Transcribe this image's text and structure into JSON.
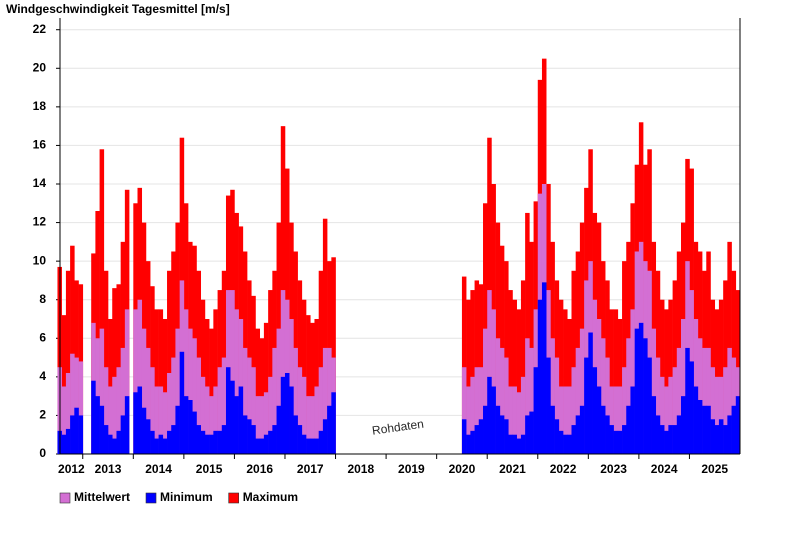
{
  "chart_data": {
    "type": "bar",
    "title": "Windgeschwindigkeit Tagesmittel [m/s]",
    "watermark": "Rohdaten",
    "x": [
      2012.5,
      2012.583,
      2012.667,
      2012.75,
      2012.833,
      2012.917,
      2013.167,
      2013.25,
      2013.333,
      2013.417,
      2013.5,
      2013.583,
      2013.667,
      2013.75,
      2013.833,
      2014,
      2014.083,
      2014.167,
      2014.25,
      2014.333,
      2014.417,
      2014.5,
      2014.583,
      2014.667,
      2014.75,
      2014.833,
      2014.917,
      2015,
      2015.083,
      2015.167,
      2015.25,
      2015.333,
      2015.417,
      2015.5,
      2015.583,
      2015.667,
      2015.75,
      2015.833,
      2015.917,
      2016,
      2016.083,
      2016.167,
      2016.25,
      2016.333,
      2016.417,
      2016.5,
      2016.583,
      2016.667,
      2016.75,
      2016.833,
      2016.917,
      2017,
      2017.083,
      2017.167,
      2017.25,
      2017.333,
      2017.417,
      2017.5,
      2017.583,
      2017.667,
      2017.75,
      2017.833,
      2017.917,
      2020.5,
      2020.583,
      2020.667,
      2020.75,
      2020.833,
      2020.917,
      2021,
      2021.083,
      2021.167,
      2021.25,
      2021.333,
      2021.417,
      2021.5,
      2021.583,
      2021.667,
      2021.75,
      2021.833,
      2021.917,
      2022,
      2022.083,
      2022.167,
      2022.25,
      2022.333,
      2022.417,
      2022.5,
      2022.583,
      2022.667,
      2022.75,
      2022.833,
      2022.917,
      2023,
      2023.083,
      2023.167,
      2023.25,
      2023.333,
      2023.417,
      2023.5,
      2023.583,
      2023.667,
      2023.75,
      2023.833,
      2023.917,
      2024,
      2024.083,
      2024.167,
      2024.25,
      2024.333,
      2024.417,
      2024.5,
      2024.583,
      2024.667,
      2024.75,
      2024.833,
      2024.917,
      2025,
      2025.083,
      2025.167,
      2025.25,
      2025.333,
      2025.417,
      2025.5,
      2025.583,
      2025.667,
      2025.75,
      2025.833,
      2025.917
    ],
    "series": [
      {
        "name": "Maximum",
        "color": "#ff0000",
        "values": [
          9.7,
          7.2,
          9.5,
          10.8,
          9.0,
          8.8,
          10.4,
          12.6,
          15.8,
          9.5,
          7.0,
          8.6,
          8.8,
          11.0,
          13.7,
          13.0,
          13.8,
          12.0,
          10.0,
          8.7,
          7.5,
          7.5,
          7.0,
          9.5,
          10.5,
          12.0,
          16.4,
          13.0,
          11.0,
          10.8,
          9.5,
          8.0,
          7.0,
          6.5,
          7.5,
          8.5,
          9.5,
          13.4,
          13.7,
          12.5,
          11.8,
          10.5,
          9.0,
          8.2,
          6.5,
          6.0,
          6.8,
          8.5,
          9.5,
          12.0,
          17.0,
          14.8,
          12.0,
          10.5,
          9.0,
          8.0,
          7.2,
          6.8,
          7.0,
          9.5,
          12.2,
          10.0,
          10.2,
          9.2,
          8.0,
          8.5,
          9.0,
          8.8,
          13.0,
          16.4,
          14.0,
          12.0,
          10.8,
          10.0,
          8.5,
          8.0,
          7.5,
          9.0,
          12.5,
          11.0,
          13.1,
          19.4,
          20.5,
          14.0,
          11.0,
          9.0,
          8.0,
          7.5,
          7.0,
          9.5,
          10.5,
          12.0,
          13.8,
          15.8,
          12.5,
          12.0,
          10.0,
          9.0,
          7.5,
          7.5,
          7.0,
          10.0,
          11.0,
          13.0,
          15.0,
          17.2,
          15.0,
          15.8,
          11.0,
          9.5,
          8.0,
          7.5,
          8.0,
          9.0,
          10.5,
          12.0,
          15.3,
          14.8,
          11.0,
          10.5,
          9.5,
          10.5,
          8.0,
          7.5,
          8.0,
          9.0,
          11.0,
          9.5,
          8.5
        ]
      },
      {
        "name": "Mittelwert",
        "color": "#d36fd3",
        "values": [
          4.5,
          3.5,
          4.2,
          5.2,
          5.0,
          4.8,
          6.8,
          6.0,
          6.5,
          4.5,
          3.5,
          4.0,
          4.5,
          5.5,
          7.5,
          7.5,
          8.0,
          6.5,
          5.5,
          4.5,
          3.5,
          3.5,
          3.2,
          4.2,
          5.0,
          6.5,
          9.0,
          7.5,
          6.5,
          6.0,
          5.0,
          4.0,
          3.5,
          3.0,
          3.5,
          4.5,
          5.0,
          8.5,
          8.5,
          7.5,
          7.0,
          5.5,
          5.0,
          4.5,
          3.0,
          3.0,
          3.2,
          4.0,
          5.5,
          6.5,
          8.5,
          8.0,
          7.0,
          5.5,
          4.5,
          4.0,
          3.0,
          3.0,
          3.5,
          4.5,
          5.5,
          5.5,
          5.0,
          4.5,
          3.5,
          4.0,
          4.5,
          4.5,
          6.5,
          8.5,
          7.5,
          6.0,
          5.5,
          5.0,
          3.5,
          3.5,
          3.2,
          4.0,
          6.0,
          5.5,
          7.5,
          13.5,
          14.0,
          8.5,
          6.0,
          5.0,
          3.5,
          3.5,
          3.5,
          4.5,
          5.5,
          6.5,
          9.0,
          10.0,
          8.0,
          7.0,
          6.0,
          5.0,
          3.5,
          3.5,
          3.5,
          4.5,
          6.0,
          7.5,
          10.5,
          11.0,
          10.0,
          9.5,
          6.5,
          5.0,
          4.0,
          3.5,
          4.0,
          4.5,
          5.5,
          7.0,
          10.0,
          8.5,
          7.0,
          6.0,
          5.5,
          5.5,
          4.5,
          4.0,
          4.0,
          4.5,
          5.5,
          5.0,
          4.5
        ]
      },
      {
        "name": "Minimum",
        "color": "#0000ff",
        "values": [
          1.2,
          1.0,
          1.3,
          2.0,
          2.4,
          2.0,
          3.8,
          3.0,
          2.5,
          1.5,
          1.0,
          0.8,
          1.2,
          2.0,
          3.0,
          3.2,
          3.5,
          2.4,
          1.8,
          1.2,
          0.8,
          1.0,
          0.8,
          1.2,
          1.5,
          2.5,
          5.3,
          3.0,
          2.8,
          2.2,
          1.5,
          1.2,
          1.0,
          1.0,
          1.2,
          1.2,
          1.5,
          4.5,
          3.8,
          3.0,
          3.5,
          2.0,
          1.8,
          1.5,
          0.8,
          0.8,
          1.0,
          1.2,
          1.5,
          2.5,
          4.0,
          4.2,
          3.5,
          2.0,
          1.5,
          1.0,
          0.8,
          0.8,
          0.8,
          1.2,
          1.8,
          2.5,
          3.2,
          1.8,
          1.0,
          1.2,
          1.5,
          1.8,
          2.5,
          4.0,
          3.5,
          2.5,
          2.0,
          1.8,
          1.0,
          1.0,
          0.8,
          1.0,
          2.0,
          2.2,
          4.5,
          8.0,
          8.9,
          5.0,
          2.5,
          1.8,
          1.2,
          1.0,
          1.0,
          1.5,
          2.0,
          2.5,
          5.0,
          6.3,
          4.5,
          3.5,
          2.5,
          2.0,
          1.5,
          1.2,
          1.2,
          1.5,
          2.5,
          3.5,
          6.5,
          6.8,
          6.0,
          5.0,
          3.0,
          2.0,
          1.5,
          1.2,
          1.5,
          1.5,
          2.0,
          3.0,
          5.5,
          4.8,
          3.5,
          2.8,
          2.5,
          2.5,
          1.8,
          1.5,
          1.8,
          1.5,
          2.0,
          2.5,
          3.0
        ]
      }
    ],
    "legend_order": [
      1,
      2,
      0
    ],
    "xlim": [
      2012.55,
      2026.0
    ],
    "xticks": [
      2012,
      2013,
      2014,
      2015,
      2016,
      2017,
      2018,
      2019,
      2020,
      2021,
      2022,
      2023,
      2024,
      2025
    ],
    "ylim": [
      0,
      22.4
    ],
    "yticks": [
      0,
      2,
      4,
      6,
      8,
      10,
      12,
      14,
      16,
      18,
      20,
      22
    ],
    "grid": true
  }
}
